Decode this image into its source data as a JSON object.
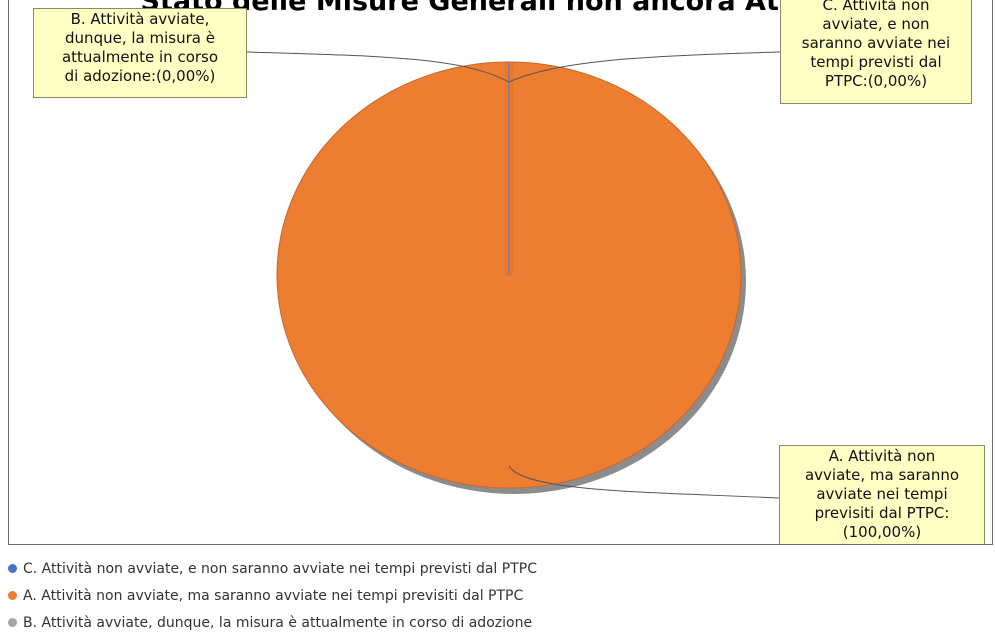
{
  "chart_data": {
    "type": "pie",
    "title": "Stato delle Misure Generali non ancora Attuate",
    "slices": [
      {
        "label": "A. Attività non avviate, ma saranno avviate nei tempi previsiti dal PTPC",
        "callout": "A. Attività non avviate, ma saranno avviate nei tempi previsiti dal PTPC: (100,00%)",
        "callout_lines": [
          "A. Attività non",
          "avviate, ma saranno",
          "avviate nei tempi",
          "previsiti dal PTPC:",
          "(100,00%)"
        ],
        "value": 100.0,
        "color": "#ed7d31"
      },
      {
        "label": "B. Attività avviate, dunque, la misura è attualmente in corso di adozione",
        "callout": "B. Attività avviate, dunque, la misura è attualmente in corso di adozione:(0,00%)",
        "callout_lines": [
          "B. Attività avviate,",
          "dunque, la misura è",
          "attualmente in corso",
          "di adozione:(0,00%)"
        ],
        "value": 0.0,
        "color": "#a5a5a5"
      },
      {
        "label": "C. Attività non avviate, e non saranno avviate nei tempi previsti dal PTPC",
        "callout": "C. Attività non avviate, e non saranno avviate nei tempi previsti dal PTPC:(0,00%)",
        "callout_lines": [
          "C. Attività non",
          "avviate, e non",
          "saranno avviate nei",
          "tempi previsti dal",
          "PTPC:(0,00%)"
        ],
        "value": 0.0,
        "color": "#4472c4"
      }
    ],
    "legend_order": [
      2,
      0,
      1
    ],
    "legend_placement": "bottom"
  }
}
